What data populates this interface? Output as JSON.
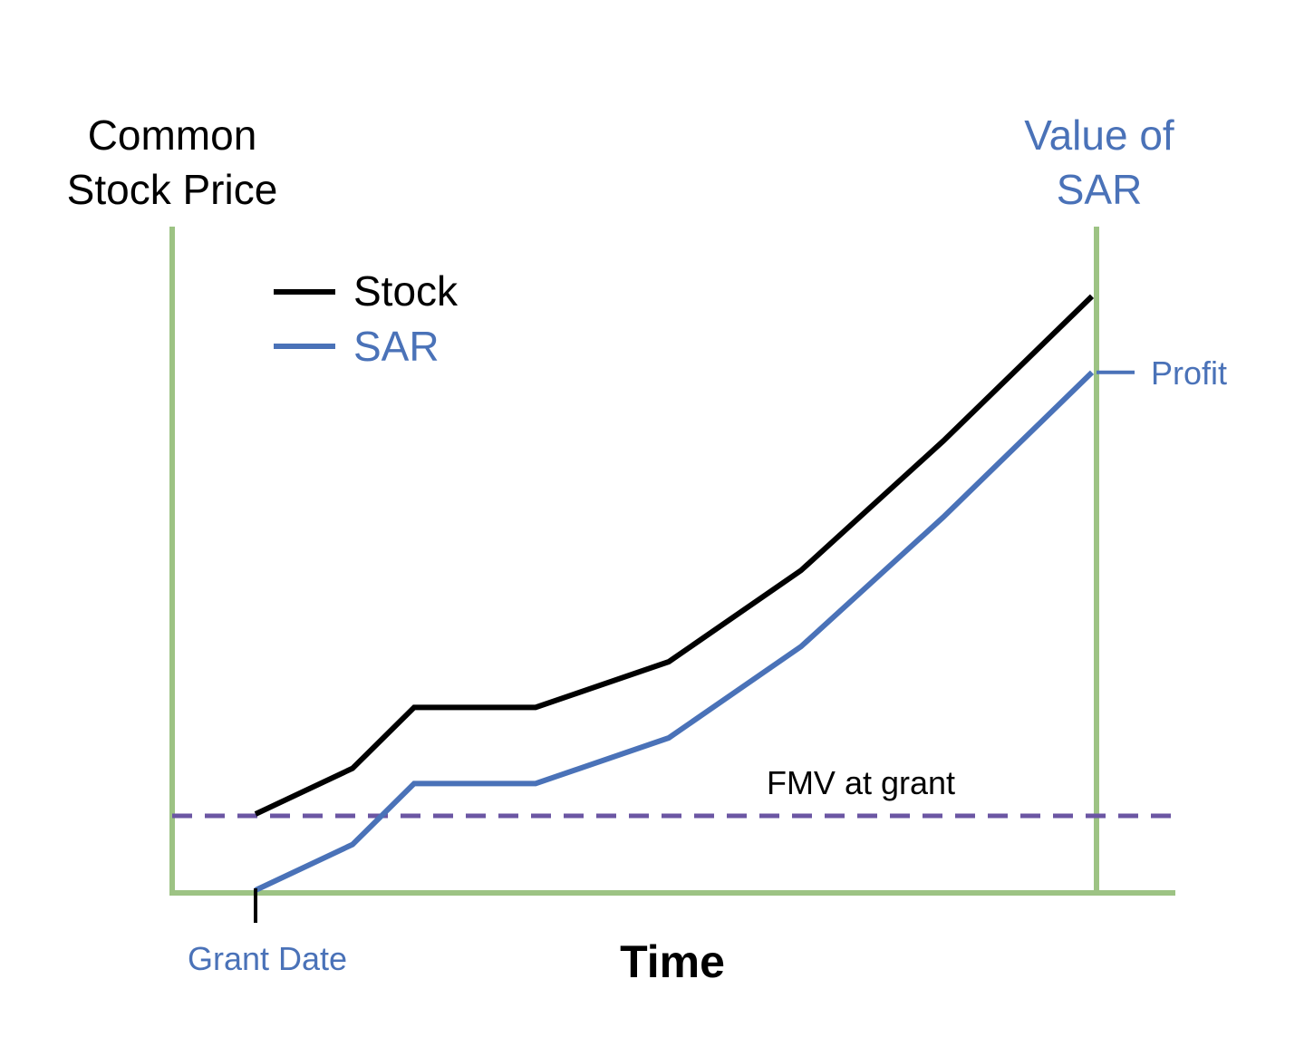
{
  "chart_data": {
    "type": "line",
    "title": "",
    "ylabel_left": [
      "Common",
      "Stock Price"
    ],
    "ylabel_right": [
      "Value of",
      "SAR"
    ],
    "xlabel": "Time",
    "legend": {
      "placement": "top-left",
      "entries": [
        {
          "name": "Stock",
          "color": "#000000"
        },
        {
          "name": "SAR",
          "color": "#4A72B8"
        }
      ]
    },
    "series": [
      {
        "name": "Stock",
        "color": "#000000",
        "x": [
          1,
          2,
          3,
          4,
          5,
          6,
          7,
          8
        ],
        "values": [
          1.0,
          1.6,
          2.4,
          2.4,
          3.0,
          4.2,
          5.9,
          7.8
        ]
      },
      {
        "name": "SAR",
        "color": "#4A72B8",
        "x": [
          1,
          2,
          3,
          4,
          5,
          6,
          7,
          8
        ],
        "values": [
          0.0,
          0.6,
          1.4,
          1.4,
          2.0,
          3.2,
          4.9,
          6.8
        ]
      }
    ],
    "reference_line": {
      "label": "FMV at grant",
      "value": 1.0,
      "color": "#6B56A3",
      "style": "dashed"
    },
    "annotations": {
      "grant_date": {
        "label": "Grant Date",
        "x": 1,
        "color": "#4A72B8"
      },
      "profit": {
        "label": "Profit",
        "color": "#4A72B8"
      }
    },
    "axes_color": "#9DC384",
    "grid": false
  }
}
